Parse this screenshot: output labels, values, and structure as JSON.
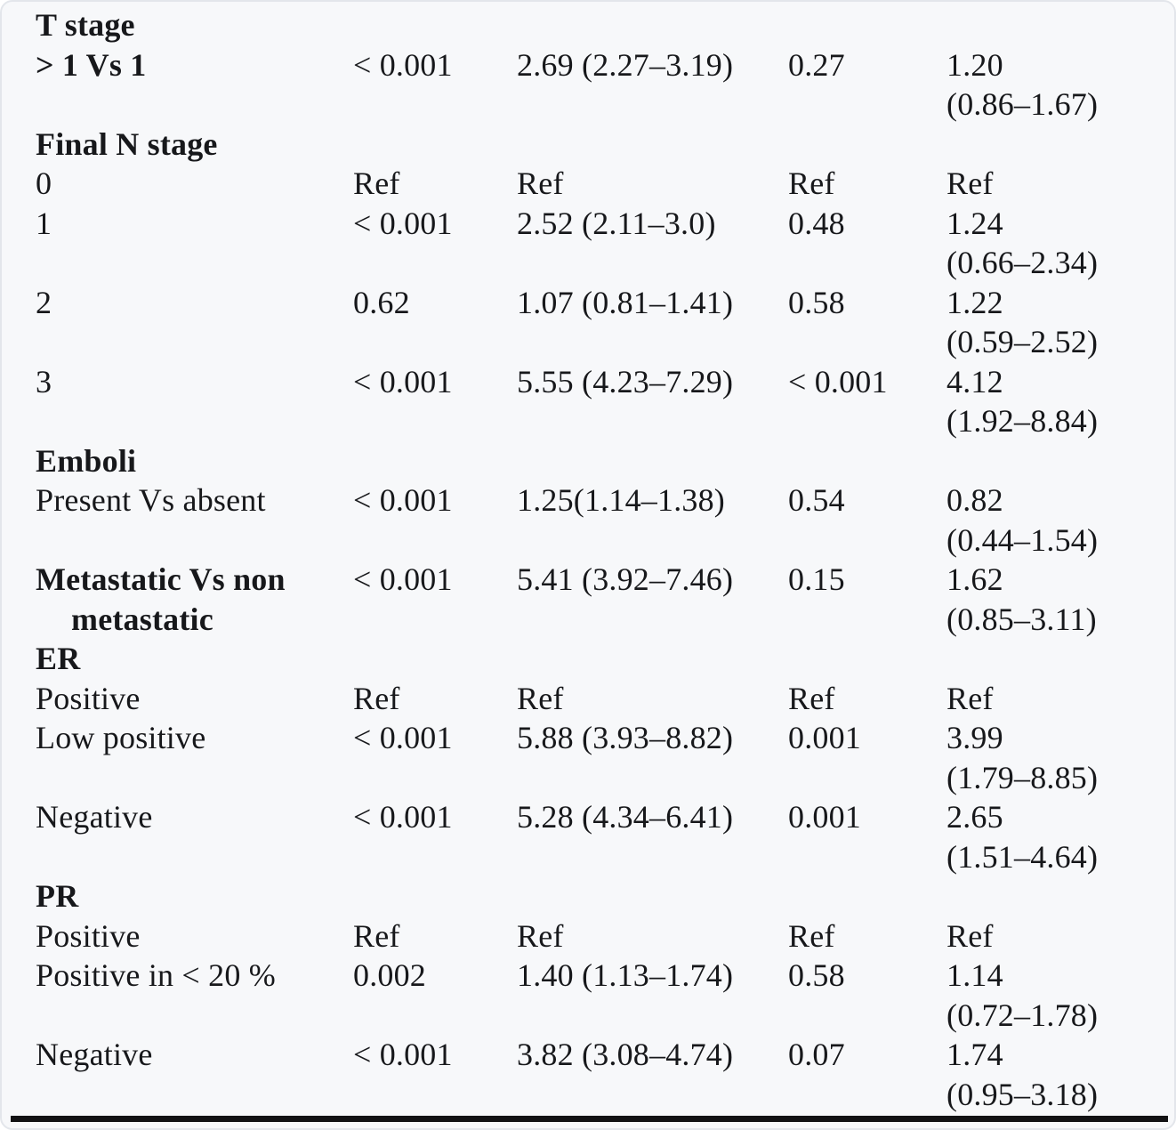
{
  "colors": {
    "text": "#17181b",
    "card_background": "#f7f8fa",
    "card_border": "#e3e6eb",
    "bottom_rule": "#121214"
  },
  "table": {
    "rows": [
      {
        "type": "group",
        "label": "T stage"
      },
      {
        "type": "data",
        "bold": true,
        "label": "> 1 Vs 1",
        "p1": "< 0.001",
        "hr1": "2.69 (2.27–3.19)",
        "p2": "0.27",
        "hr2": "1.20",
        "ci2": "(0.86–1.67)"
      },
      {
        "type": "group",
        "label": "Final N stage"
      },
      {
        "type": "data",
        "label": "0",
        "p1": "Ref",
        "hr1": "Ref",
        "p2": "Ref",
        "hr2": "Ref"
      },
      {
        "type": "data",
        "label": "1",
        "p1": "< 0.001",
        "hr1": "2.52 (2.11–3.0)",
        "p2": "0.48",
        "hr2": "1.24",
        "ci2": "(0.66–2.34)"
      },
      {
        "type": "data",
        "label": "2",
        "p1": "0.62",
        "hr1": "1.07 (0.81–1.41)",
        "p2": "0.58",
        "hr2": "1.22",
        "ci2": "(0.59–2.52)"
      },
      {
        "type": "data",
        "label": "3",
        "p1": "< 0.001",
        "hr1": "5.55 (4.23–7.29)",
        "p2": "< 0.001",
        "hr2": "4.12",
        "ci2": "(1.92–8.84)"
      },
      {
        "type": "group",
        "label": "Emboli"
      },
      {
        "type": "data",
        "label": "Present Vs absent",
        "p1": "< 0.001",
        "hr1": "1.25(1.14–1.38)",
        "p2": "0.54",
        "hr2": "0.82",
        "ci2": "(0.44–1.54)"
      },
      {
        "type": "data",
        "bold": true,
        "label": "Metastatic Vs non",
        "label2": "metastatic",
        "p1": "< 0.001",
        "hr1": "5.41 (3.92–7.46)",
        "p2": "0.15",
        "hr2": "1.62",
        "ci2": "(0.85–3.11)"
      },
      {
        "type": "group",
        "label": "ER"
      },
      {
        "type": "data",
        "label": "Positive",
        "p1": "Ref",
        "hr1": "Ref",
        "p2": "Ref",
        "hr2": "Ref"
      },
      {
        "type": "data",
        "label": "Low positive",
        "p1": "< 0.001",
        "hr1": "5.88 (3.93–8.82)",
        "p2": "0.001",
        "hr2": "3.99",
        "ci2": "(1.79–8.85)"
      },
      {
        "type": "data",
        "label": "Negative",
        "p1": "< 0.001",
        "hr1": "5.28 (4.34–6.41)",
        "p2": "0.001",
        "hr2": "2.65",
        "ci2": "(1.51–4.64)"
      },
      {
        "type": "group",
        "label": "PR"
      },
      {
        "type": "data",
        "label": "Positive",
        "p1": "Ref",
        "hr1": "Ref",
        "p2": "Ref",
        "hr2": "Ref"
      },
      {
        "type": "data",
        "label": "Positive in < 20 %",
        "p1": "0.002",
        "hr1": "1.40 (1.13–1.74)",
        "p2": "0.58",
        "hr2": "1.14",
        "ci2": "(0.72–1.78)"
      },
      {
        "type": "data",
        "label": "Negative",
        "p1": "< 0.001",
        "hr1": "3.82 (3.08–4.74)",
        "p2": "0.07",
        "hr2": "1.74",
        "ci2": "(0.95–3.18)"
      }
    ]
  }
}
